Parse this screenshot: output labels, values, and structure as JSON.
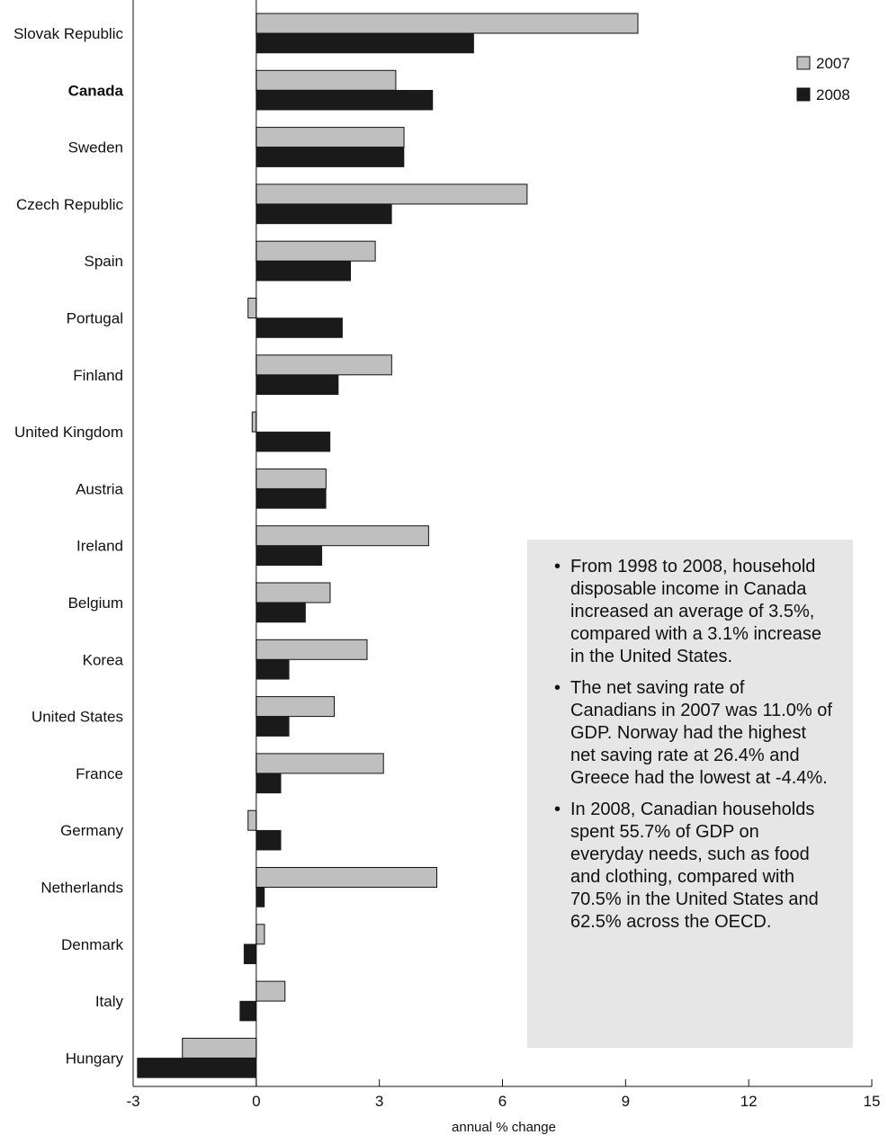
{
  "chart_data": {
    "type": "bar",
    "orientation": "horizontal",
    "categories": [
      "Slovak Republic",
      "Canada",
      "Sweden",
      "Czech Republic",
      "Spain",
      "Portugal",
      "Finland",
      "United Kingdom",
      "Austria",
      "Ireland",
      "Belgium",
      "Korea",
      "United States",
      "France",
      "Germany",
      "Netherlands",
      "Denmark",
      "Italy",
      "Hungary"
    ],
    "highlight_category": "Canada",
    "series": [
      {
        "name": "2007",
        "color": "#bfbfbf",
        "values": [
          9.3,
          3.4,
          3.6,
          6.6,
          2.9,
          -0.2,
          3.3,
          -0.1,
          1.7,
          4.2,
          1.8,
          2.7,
          1.9,
          3.1,
          -0.2,
          4.4,
          0.2,
          0.7,
          -1.8
        ]
      },
      {
        "name": "2008",
        "color": "#1a1a1a",
        "values": [
          5.3,
          4.3,
          3.6,
          3.3,
          2.3,
          2.1,
          2.0,
          1.8,
          1.7,
          1.6,
          1.2,
          0.8,
          0.8,
          0.6,
          0.6,
          0.2,
          -0.3,
          -0.4,
          -2.9
        ]
      }
    ],
    "xlabel": "annual % change",
    "xlim": [
      -3,
      15
    ],
    "xticks": [
      -3,
      0,
      3,
      6,
      9,
      12,
      15
    ],
    "legend_position": "top-right",
    "grid": false
  },
  "notes": [
    "From 1998 to 2008, household disposable income in Canada increased an average of 3.5%, compared with a 3.1% increase in the United States.",
    "The net saving rate of Canadians in 2007 was 11.0% of GDP. Norway had the highest net saving rate at 26.4% and Greece had the lowest at -4.4%.",
    "In 2008, Canadian households spent 55.7% of GDP on everyday needs, such as food and clothing, compared with 70.5% in the United States and 62.5% across the OECD."
  ]
}
